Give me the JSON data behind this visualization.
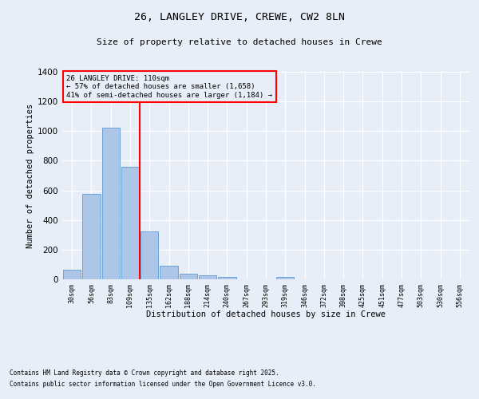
{
  "title1": "26, LANGLEY DRIVE, CREWE, CW2 8LN",
  "title2": "Size of property relative to detached houses in Crewe",
  "xlabel": "Distribution of detached houses by size in Crewe",
  "ylabel": "Number of detached properties",
  "categories": [
    "30sqm",
    "56sqm",
    "83sqm",
    "109sqm",
    "135sqm",
    "162sqm",
    "188sqm",
    "214sqm",
    "240sqm",
    "267sqm",
    "293sqm",
    "319sqm",
    "346sqm",
    "372sqm",
    "398sqm",
    "425sqm",
    "451sqm",
    "477sqm",
    "503sqm",
    "530sqm",
    "556sqm"
  ],
  "values": [
    65,
    578,
    1025,
    760,
    325,
    92,
    38,
    25,
    14,
    0,
    0,
    16,
    0,
    0,
    0,
    0,
    0,
    0,
    0,
    0,
    0
  ],
  "bar_color": "#adc6e8",
  "bar_edge_color": "#5b9bd5",
  "background_color": "#e8eef8",
  "grid_color": "#ffffff",
  "vline_color": "red",
  "annotation_text": "26 LANGLEY DRIVE: 110sqm\n← 57% of detached houses are smaller (1,658)\n41% of semi-detached houses are larger (1,184) →",
  "annotation_box_color": "red",
  "ylim": [
    0,
    1400
  ],
  "yticks": [
    0,
    200,
    400,
    600,
    800,
    1000,
    1200,
    1400
  ],
  "footnote1": "Contains HM Land Registry data © Crown copyright and database right 2025.",
  "footnote2": "Contains public sector information licensed under the Open Government Licence v3.0."
}
